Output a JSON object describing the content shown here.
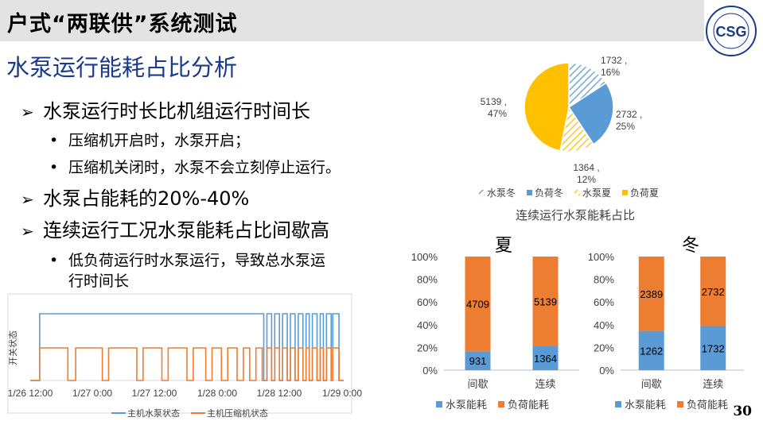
{
  "header": {
    "title": "户式“两联供”系统测试",
    "logo_label": "CSG UNIVERSITY"
  },
  "section_heading": "水泵运行能耗占比分析",
  "bullets": [
    {
      "text": "水泵运行时长比机组运行时间长",
      "sub": [
        "压缩机开启时，水泵开启；",
        "压缩机关闭时，水泵不会立刻停止运行。"
      ]
    },
    {
      "text": "水泵占能耗的20%-40%",
      "sub": []
    },
    {
      "text": "连续运行工况水泵能耗占比间歇高",
      "sub": [
        "低负荷运行时水泵运行，导致总水泵运",
        "行时间长"
      ]
    }
  ],
  "page_number": "30",
  "chart_data": [
    {
      "type": "pie",
      "title": "连续运行水泵能耗占比",
      "categories": [
        "水泵冬",
        "负荷冬",
        "水泵夏",
        "负荷夏"
      ],
      "values": [
        1732,
        2732,
        1364,
        5139
      ],
      "percent_labels": [
        "16%",
        "25%",
        "12%",
        "47%"
      ],
      "colors": [
        "#5b9bd5",
        "#5b9bd5",
        "#ffc000",
        "#ffc000"
      ],
      "legend": "bottom"
    },
    {
      "type": "bar",
      "stacked": "percent",
      "title": "夏",
      "categories": [
        "间歇",
        "连续"
      ],
      "series": [
        {
          "name": "水泵能耗",
          "values": [
            931,
            1364
          ],
          "color": "#5b9bd5"
        },
        {
          "name": "负荷能耗",
          "values": [
            4709,
            5139
          ],
          "color": "#ed7d31"
        }
      ],
      "ylim": [
        0,
        100
      ],
      "yticks": [
        "0%",
        "20%",
        "40%",
        "60%",
        "80%",
        "100%"
      ],
      "legend": "bottom"
    },
    {
      "type": "bar",
      "stacked": "percent",
      "title": "冬",
      "categories": [
        "间歇",
        "连续"
      ],
      "series": [
        {
          "name": "水泵能耗",
          "values": [
            1262,
            1732
          ],
          "color": "#5b9bd5"
        },
        {
          "name": "负荷能耗",
          "values": [
            2389,
            2732
          ],
          "color": "#ed7d31"
        }
      ],
      "ylim": [
        0,
        100
      ],
      "yticks": [
        "0%",
        "20%",
        "40%",
        "60%",
        "80%",
        "100%"
      ],
      "legend": "bottom"
    },
    {
      "type": "line",
      "ylabel": "开关状态",
      "x_ticks": [
        "1/26 12:00",
        "1/27 0:00",
        "1/27 12:00",
        "1/28 0:00",
        "1/28 12:00",
        "1/29 0:00"
      ],
      "series": [
        {
          "name": "主机水泵状态",
          "color": "#5b9bd5",
          "on_intervals": [
            [
              0.03,
              0.745
            ],
            [
              0.755,
              0.77
            ],
            [
              0.78,
              0.795
            ],
            [
              0.805,
              0.82
            ],
            [
              0.83,
              0.845
            ],
            [
              0.855,
              0.87
            ],
            [
              0.88,
              0.89
            ],
            [
              0.9,
              0.915
            ],
            [
              0.925,
              0.935
            ],
            [
              0.945,
              0.96
            ],
            [
              0.965,
              0.985
            ]
          ]
        },
        {
          "name": "主机压缩机状态",
          "color": "#ed7d31",
          "on_intervals": [
            [
              0.03,
              0.12
            ],
            [
              0.145,
              0.23
            ],
            [
              0.25,
              0.34
            ],
            [
              0.36,
              0.42
            ],
            [
              0.44,
              0.5
            ],
            [
              0.52,
              0.56
            ],
            [
              0.58,
              0.61
            ],
            [
              0.63,
              0.66
            ],
            [
              0.68,
              0.7
            ],
            [
              0.72,
              0.74
            ],
            [
              0.755,
              0.77
            ],
            [
              0.78,
              0.795
            ],
            [
              0.805,
              0.82
            ],
            [
              0.83,
              0.845
            ],
            [
              0.855,
              0.87
            ],
            [
              0.88,
              0.89
            ],
            [
              0.9,
              0.915
            ],
            [
              0.925,
              0.935
            ],
            [
              0.945,
              0.96
            ],
            [
              0.965,
              0.985
            ]
          ]
        }
      ],
      "legend": "bottom"
    }
  ]
}
